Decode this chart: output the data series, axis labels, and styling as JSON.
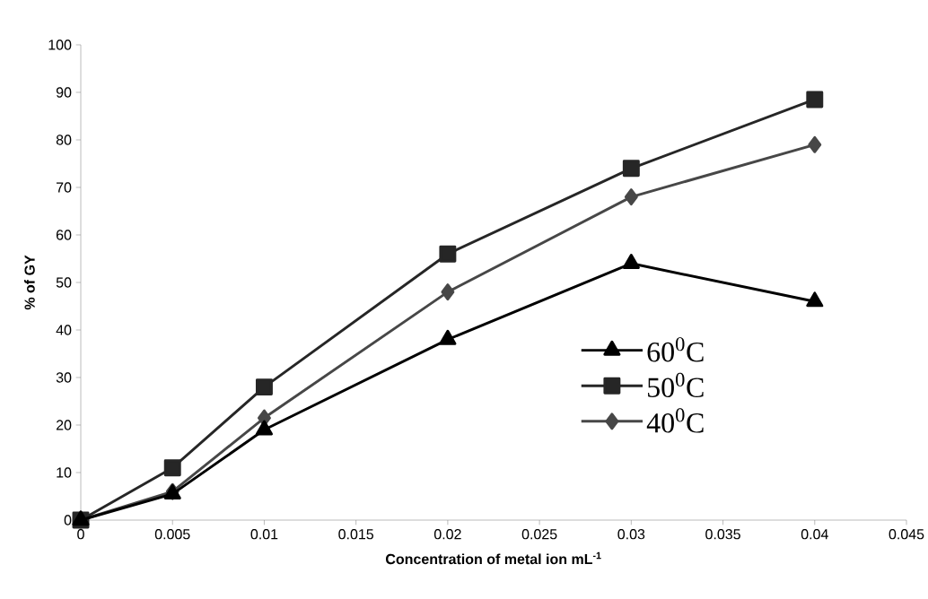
{
  "chart_data": {
    "type": "line",
    "xlabel": "Concentration of metal ion mL$^{-1}$",
    "ylabel": "% of GY",
    "x": [
      0,
      0.005,
      0.01,
      0.02,
      0.03,
      0.04
    ],
    "series": [
      {
        "name": "60$^{0}$C",
        "color": "#000000",
        "marker": "triangle",
        "values": [
          0,
          5.5,
          19,
          38,
          54,
          46
        ]
      },
      {
        "name": "50$^{0}$C",
        "color": "#262626",
        "marker": "square",
        "values": [
          0,
          11,
          28,
          56,
          74,
          88.5
        ]
      },
      {
        "name": "40$^{0}$C",
        "color": "#474747",
        "marker": "diamond",
        "values": [
          0,
          6,
          21.5,
          48,
          68,
          79
        ]
      }
    ],
    "xlim": [
      0,
      0.045
    ],
    "ylim": [
      0,
      100
    ],
    "xticks": [
      0,
      0.005,
      0.01,
      0.015,
      0.02,
      0.025,
      0.03,
      0.035,
      0.04,
      0.045
    ],
    "yticks": [
      0,
      10,
      20,
      30,
      40,
      50,
      60,
      70,
      80,
      90,
      100
    ],
    "grid": false,
    "legend": "right",
    "line_style": "solid"
  }
}
